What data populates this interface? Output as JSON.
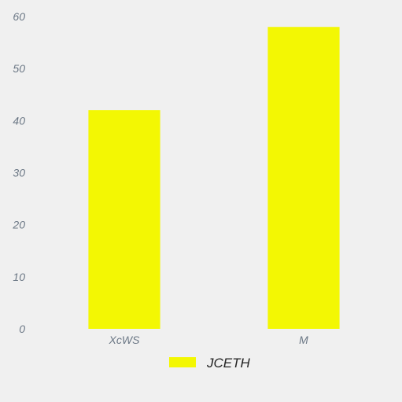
{
  "chart_data": {
    "type": "bar",
    "categories": [
      "XcWS",
      "M"
    ],
    "series": [
      {
        "name": "JCETH",
        "values": [
          42,
          58
        ],
        "color": "#f3f703"
      }
    ],
    "ylim": [
      0,
      60
    ],
    "yticks": [
      0,
      10,
      20,
      30,
      40,
      50,
      60
    ],
    "grid": false,
    "legend": "bottom-center"
  }
}
